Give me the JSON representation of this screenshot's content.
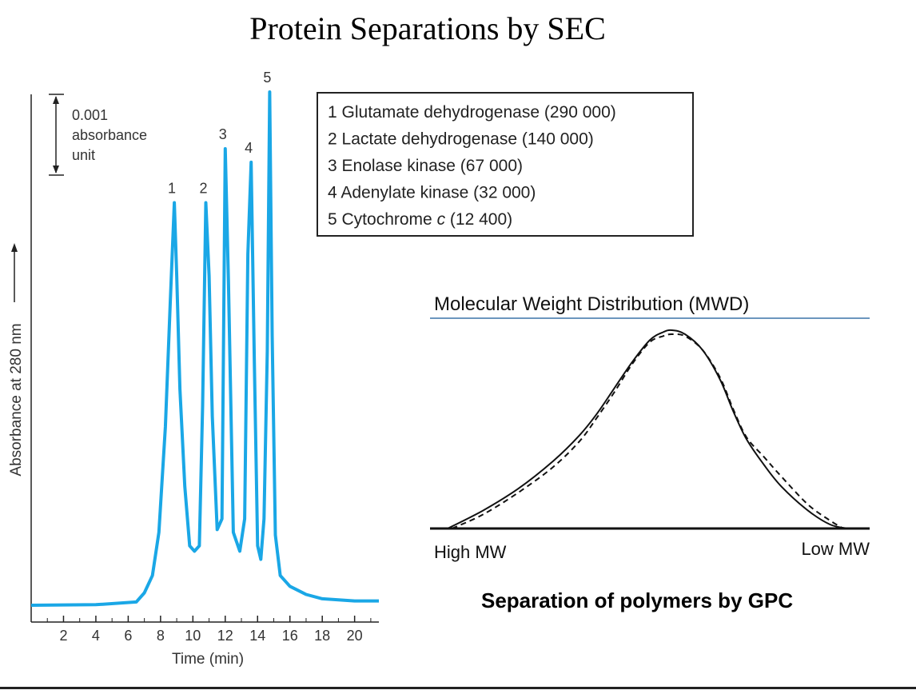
{
  "title": "Protein Separations by SEC",
  "caption": "Separation of polymers by GPC",
  "chart_data": [
    {
      "type": "line",
      "xlabel": "Time (min)",
      "ylabel": "Absorbance at 280 nm",
      "xlim": [
        0,
        21.5
      ],
      "x_ticks": [
        2,
        4,
        6,
        8,
        10,
        12,
        14,
        16,
        18,
        20
      ],
      "scale_bar": {
        "value": "0.001",
        "lines": [
          "0.001",
          "absorbance",
          "unit"
        ]
      },
      "line_color": "#1aa7e6",
      "series": [
        {
          "x": [
            0,
            4,
            6.5,
            7.0,
            7.5,
            7.9,
            8.3,
            8.6,
            8.85,
            9.0,
            9.2,
            9.5,
            9.8,
            10.1,
            10.4,
            10.6,
            10.8,
            11.0,
            11.2,
            11.5,
            11.8,
            12.0,
            12.2,
            12.5,
            12.9,
            13.2,
            13.4,
            13.6,
            13.8,
            14.0,
            14.2,
            14.4,
            14.6,
            14.75,
            14.9,
            15.1,
            15.4,
            16.0,
            17.0,
            18.0,
            20.0,
            21.5
          ],
          "y": [
            0.0,
            0.01,
            0.06,
            0.23,
            0.55,
            1.35,
            3.3,
            5.6,
            7.45,
            6.1,
            4.0,
            2.2,
            1.1,
            1.0,
            1.1,
            3.7,
            7.45,
            6.1,
            3.5,
            1.4,
            1.6,
            8.45,
            6.0,
            1.35,
            1.0,
            1.6,
            6.5,
            8.2,
            4.5,
            1.1,
            0.85,
            1.6,
            4.7,
            9.5,
            5.0,
            1.3,
            0.55,
            0.35,
            0.2,
            0.12,
            0.08,
            0.08
          ]
        }
      ],
      "peaks": [
        {
          "label": "1",
          "x": 8.85,
          "y": 7.45
        },
        {
          "label": "2",
          "x": 10.8,
          "y": 7.45
        },
        {
          "label": "3",
          "x": 12.0,
          "y": 8.45
        },
        {
          "label": "4",
          "x": 13.6,
          "y": 8.2
        },
        {
          "label": "5",
          "x": 14.75,
          "y": 9.5
        }
      ],
      "legend": {
        "placement": "top-right",
        "items": [
          {
            "num": "1",
            "name": "Glutamate dehydrogenase",
            "mw": "(290 000)"
          },
          {
            "num": "2",
            "name": "Lactate dehydrogenase",
            "mw": "(140 000)"
          },
          {
            "num": "3",
            "name": "Enolase kinase",
            "mw": "(67 000)"
          },
          {
            "num": "4",
            "name": "Adenylate kinase",
            "mw": "(32 000)"
          },
          {
            "num": "5",
            "name": "Cytochrome",
            "italic": "c",
            "mw": "(12 400)"
          }
        ]
      }
    },
    {
      "type": "line",
      "title": "Molecular Weight Distribution (MWD)",
      "x_left_label": "High MW",
      "x_right_label": "Low MW",
      "xlim": [
        0,
        1
      ],
      "ylim": [
        0,
        1
      ],
      "series": [
        {
          "style": "solid",
          "x": [
            0.04,
            0.12,
            0.2,
            0.28,
            0.34,
            0.38,
            0.42,
            0.46,
            0.5,
            0.53,
            0.55,
            0.58,
            0.62,
            0.66,
            0.69,
            0.72,
            0.76,
            0.8,
            0.86,
            0.91,
            0.95
          ],
          "y": [
            0.0,
            0.09,
            0.2,
            0.34,
            0.47,
            0.58,
            0.71,
            0.84,
            0.95,
            0.99,
            1.0,
            0.98,
            0.9,
            0.75,
            0.59,
            0.45,
            0.32,
            0.21,
            0.09,
            0.02,
            0.0
          ]
        },
        {
          "style": "dashed",
          "x": [
            0.05,
            0.12,
            0.2,
            0.28,
            0.34,
            0.38,
            0.42,
            0.46,
            0.5,
            0.53,
            0.55,
            0.58,
            0.62,
            0.66,
            0.69,
            0.72,
            0.76,
            0.8,
            0.86,
            0.91,
            0.94
          ],
          "y": [
            0.0,
            0.07,
            0.18,
            0.31,
            0.44,
            0.56,
            0.69,
            0.83,
            0.94,
            0.97,
            0.98,
            0.97,
            0.9,
            0.76,
            0.6,
            0.46,
            0.36,
            0.26,
            0.12,
            0.04,
            0.0
          ]
        }
      ]
    }
  ]
}
